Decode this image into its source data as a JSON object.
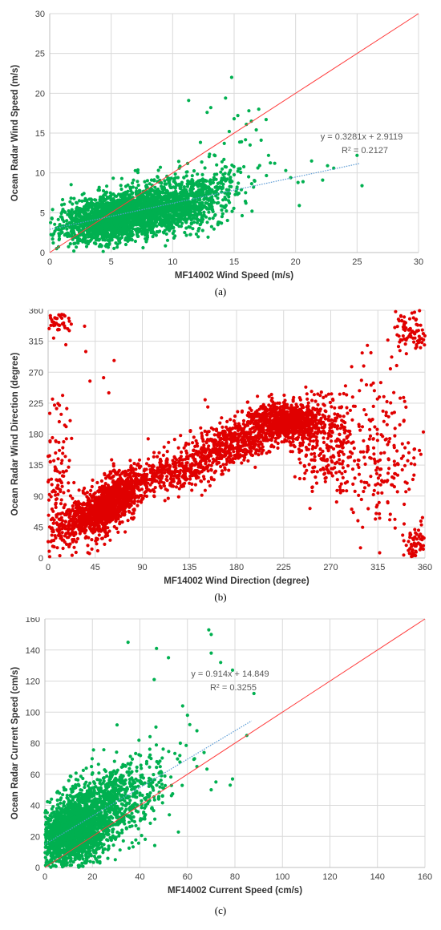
{
  "chart_data": [
    {
      "id": "a",
      "type": "scatter",
      "caption": "(a)",
      "xlabel": "MF14002 Wind Speed (m/s)",
      "ylabel": "Ocean Radar Wind Speed (m/s)",
      "xlim": [
        0,
        30
      ],
      "ylim": [
        0,
        30
      ],
      "xticks": [
        0,
        5,
        10,
        15,
        20,
        25,
        30
      ],
      "yticks": [
        0,
        5,
        10,
        15,
        20,
        25,
        30
      ],
      "grid": true,
      "point_color": "#00b050",
      "one_to_one_line": {
        "color": "#ff3b3b",
        "from": [
          0,
          0
        ],
        "to": [
          30,
          30
        ]
      },
      "trendline": {
        "color": "#5b9bd5",
        "slope": 0.3281,
        "intercept": 2.9119,
        "x_range": [
          0,
          25.2
        ]
      },
      "equation": "y = 0.3281x + 2.9119",
      "r2_label": "R",
      "r2_sup": "2",
      "r2_value": " = 0.2127",
      "cloud": [
        {
          "n": 1700,
          "cx": 8.0,
          "cy": 5.5,
          "sx": 2.6,
          "sy": 1.7,
          "rho": 0.35
        },
        {
          "n": 1100,
          "cx": 4.5,
          "cy": 4.0,
          "sx": 2.0,
          "sy": 1.4,
          "rho": 0.3
        },
        {
          "n": 300,
          "cx": 12.5,
          "cy": 7.0,
          "sx": 1.8,
          "sy": 2.2,
          "rho": 0.3
        }
      ],
      "outliers": [
        [
          14.8,
          22.0
        ],
        [
          11.3,
          19.1
        ],
        [
          14.3,
          19.4
        ],
        [
          16.2,
          17.8
        ],
        [
          17.0,
          18.0
        ],
        [
          15.3,
          17.2
        ],
        [
          13.1,
          18.2
        ],
        [
          12.8,
          17.6
        ],
        [
          16.4,
          16.5
        ],
        [
          17.6,
          16.7
        ],
        [
          15.0,
          16.8
        ],
        [
          16.0,
          16.1
        ],
        [
          16.8,
          15.4
        ],
        [
          14.6,
          15.2
        ],
        [
          17.2,
          14.1
        ],
        [
          15.6,
          13.9
        ],
        [
          16.3,
          13.5
        ],
        [
          14.2,
          13.7
        ],
        [
          17.8,
          12.2
        ],
        [
          18.3,
          11.2
        ],
        [
          19.2,
          10.3
        ],
        [
          19.6,
          9.4
        ],
        [
          21.3,
          11.5
        ],
        [
          22.6,
          10.9
        ],
        [
          23.1,
          10.6
        ],
        [
          20.2,
          8.8
        ],
        [
          20.6,
          8.9
        ],
        [
          22.2,
          9.1
        ],
        [
          20.3,
          5.9
        ],
        [
          25.0,
          12.2
        ],
        [
          25.4,
          8.4
        ]
      ],
      "seed": 11
    },
    {
      "id": "b",
      "type": "scatter",
      "caption": "(b)",
      "xlabel": "MF14002 Wind Direction (degree)",
      "ylabel": "Ocean Radar Wind Direction (degree)",
      "xlim": [
        0,
        360
      ],
      "ylim": [
        0,
        360
      ],
      "xticks": [
        0,
        45,
        90,
        135,
        180,
        225,
        270,
        315,
        360
      ],
      "yticks": [
        0,
        45,
        90,
        135,
        180,
        225,
        270,
        315,
        360
      ],
      "grid": true,
      "point_color": "#e00000",
      "cloud": [
        {
          "n": 1000,
          "cx": 62,
          "cy": 82,
          "sx": 15,
          "sy": 22,
          "rho": 0.6
        },
        {
          "n": 450,
          "cx": 35,
          "cy": 58,
          "sx": 18,
          "sy": 20,
          "rho": 0.5
        },
        {
          "n": 350,
          "cx": 120,
          "cy": 125,
          "sx": 22,
          "sy": 15,
          "rho": 0.4
        },
        {
          "n": 550,
          "cx": 180,
          "cy": 168,
          "sx": 25,
          "sy": 18,
          "rho": 0.4
        },
        {
          "n": 800,
          "cx": 228,
          "cy": 200,
          "sx": 18,
          "sy": 14,
          "rho": 0.1
        },
        {
          "n": 250,
          "cx": 268,
          "cy": 165,
          "sx": 14,
          "sy": 35,
          "rho": 0.0
        },
        {
          "n": 200,
          "cx": 320,
          "cy": 150,
          "sx": 18,
          "sy": 50,
          "rho": 0.0
        },
        {
          "n": 120,
          "cx": 10,
          "cy": 120,
          "sx": 9,
          "sy": 60,
          "rho": 0.0
        },
        {
          "n": 90,
          "cx": 348,
          "cy": 330,
          "sx": 9,
          "sy": 18,
          "rho": 0.0
        },
        {
          "n": 70,
          "cx": 352,
          "cy": 20,
          "sx": 6,
          "sy": 15,
          "rho": 0.0
        },
        {
          "n": 40,
          "cx": 12,
          "cy": 342,
          "sx": 8,
          "sy": 10,
          "rho": 0.0
        }
      ],
      "outliers": [
        [
          36,
          300
        ],
        [
          63,
          287
        ],
        [
          53,
          262
        ],
        [
          40,
          257
        ],
        [
          58,
          240
        ],
        [
          300,
          298
        ],
        [
          305,
          309
        ],
        [
          290,
          278
        ],
        [
          332,
          358
        ],
        [
          337,
          352
        ],
        [
          327,
          275
        ],
        [
          268,
          238
        ],
        [
          200,
          235
        ],
        [
          150,
          230
        ]
      ],
      "seed": 29
    },
    {
      "id": "c",
      "type": "scatter",
      "caption": "(c)",
      "xlabel": "MF14002 Current Speed (cm/s)",
      "ylabel": "Ocean Radar Current Speed (cm/s)",
      "xlim": [
        0,
        160
      ],
      "ylim": [
        0,
        160
      ],
      "xticks": [
        0,
        20,
        40,
        60,
        80,
        100,
        120,
        140,
        160
      ],
      "yticks": [
        0,
        20,
        40,
        60,
        80,
        100,
        120,
        140,
        160
      ],
      "grid": true,
      "point_color": "#00b050",
      "one_to_one_line": {
        "color": "#ff3b3b",
        "from": [
          0,
          0
        ],
        "to": [
          160,
          160
        ]
      },
      "trendline": {
        "color": "#5b9bd5",
        "slope": 0.914,
        "intercept": 14.849,
        "x_range": [
          0,
          87
        ]
      },
      "equation": "y = 0.914x + 14.849",
      "r2_label": "R",
      "r2_sup": "2",
      "r2_value": " = 0.3255",
      "cloud": [
        {
          "n": 1600,
          "cx": 11,
          "cy": 22,
          "sx": 7,
          "sy": 12,
          "rho": 0.3
        },
        {
          "n": 700,
          "cx": 22,
          "cy": 35,
          "sx": 9,
          "sy": 14,
          "rho": 0.35
        },
        {
          "n": 250,
          "cx": 38,
          "cy": 50,
          "sx": 9,
          "sy": 14,
          "rho": 0.3
        }
      ],
      "outliers": [
        [
          35,
          145
        ],
        [
          47,
          141
        ],
        [
          52,
          135
        ],
        [
          69,
          153
        ],
        [
          70,
          150
        ],
        [
          70,
          138
        ],
        [
          74,
          132
        ],
        [
          79,
          127
        ],
        [
          46,
          121
        ],
        [
          58,
          104
        ],
        [
          60,
          98
        ],
        [
          61,
          92
        ],
        [
          64,
          88
        ],
        [
          57,
          80
        ],
        [
          63,
          70
        ],
        [
          67,
          74
        ],
        [
          64,
          65
        ],
        [
          72,
          55
        ],
        [
          79,
          57
        ],
        [
          78,
          53
        ],
        [
          70,
          50
        ],
        [
          88,
          112
        ],
        [
          85,
          85
        ]
      ],
      "seed": 47
    }
  ]
}
